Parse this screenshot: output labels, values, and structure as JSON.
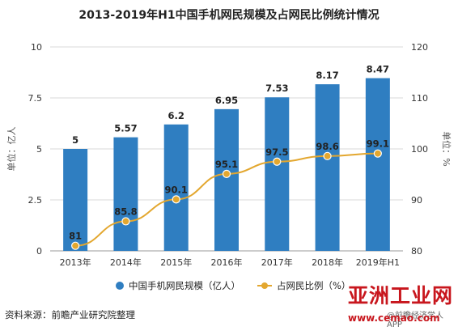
{
  "title": "2013-2019年H1中国手机网民规模及占网民比例统计情况",
  "source": "资料来源：前瞻产业研究院整理",
  "watermark": {
    "brand": "亚洲工业网",
    "site": "www.cemao.com",
    "app": "@前瞻经济学人APP"
  },
  "colors": {
    "bar": "#2f7ec1",
    "line": "#e3a72f",
    "grid": "#d9d9d9",
    "label": "#222222"
  },
  "chart_data": {
    "type": "bar",
    "categories": [
      "2013年",
      "2014年",
      "2015年",
      "2016年",
      "2017年",
      "2018年",
      "2019年H1"
    ],
    "series": [
      {
        "name": "中国手机网民规模（亿人）",
        "type": "bar",
        "axis": "left",
        "values": [
          5,
          5.57,
          6.2,
          6.95,
          7.53,
          8.17,
          8.47
        ],
        "labels": [
          "5",
          "5.57",
          "6.2",
          "6.95",
          "7.53",
          "8.17",
          "8.47"
        ]
      },
      {
        "name": "占网民比例（%）",
        "type": "line",
        "axis": "right",
        "values": [
          81,
          85.8,
          90.1,
          95.1,
          97.5,
          98.6,
          99.1
        ],
        "labels": [
          "81",
          "85.8",
          "90.1",
          "95.1",
          "97.5",
          "98.6",
          "99.1"
        ]
      }
    ],
    "ylabel": "单位：亿人",
    "ylabel_right": "单位：%",
    "ylim": [
      0,
      10
    ],
    "ylim_right": [
      80,
      120
    ],
    "yticks": [
      "0",
      "2.5",
      "5",
      "7.5",
      "10"
    ],
    "yticks_right": [
      "80",
      "90",
      "100",
      "110",
      "120"
    ],
    "grid": true,
    "legend": "bottom"
  }
}
